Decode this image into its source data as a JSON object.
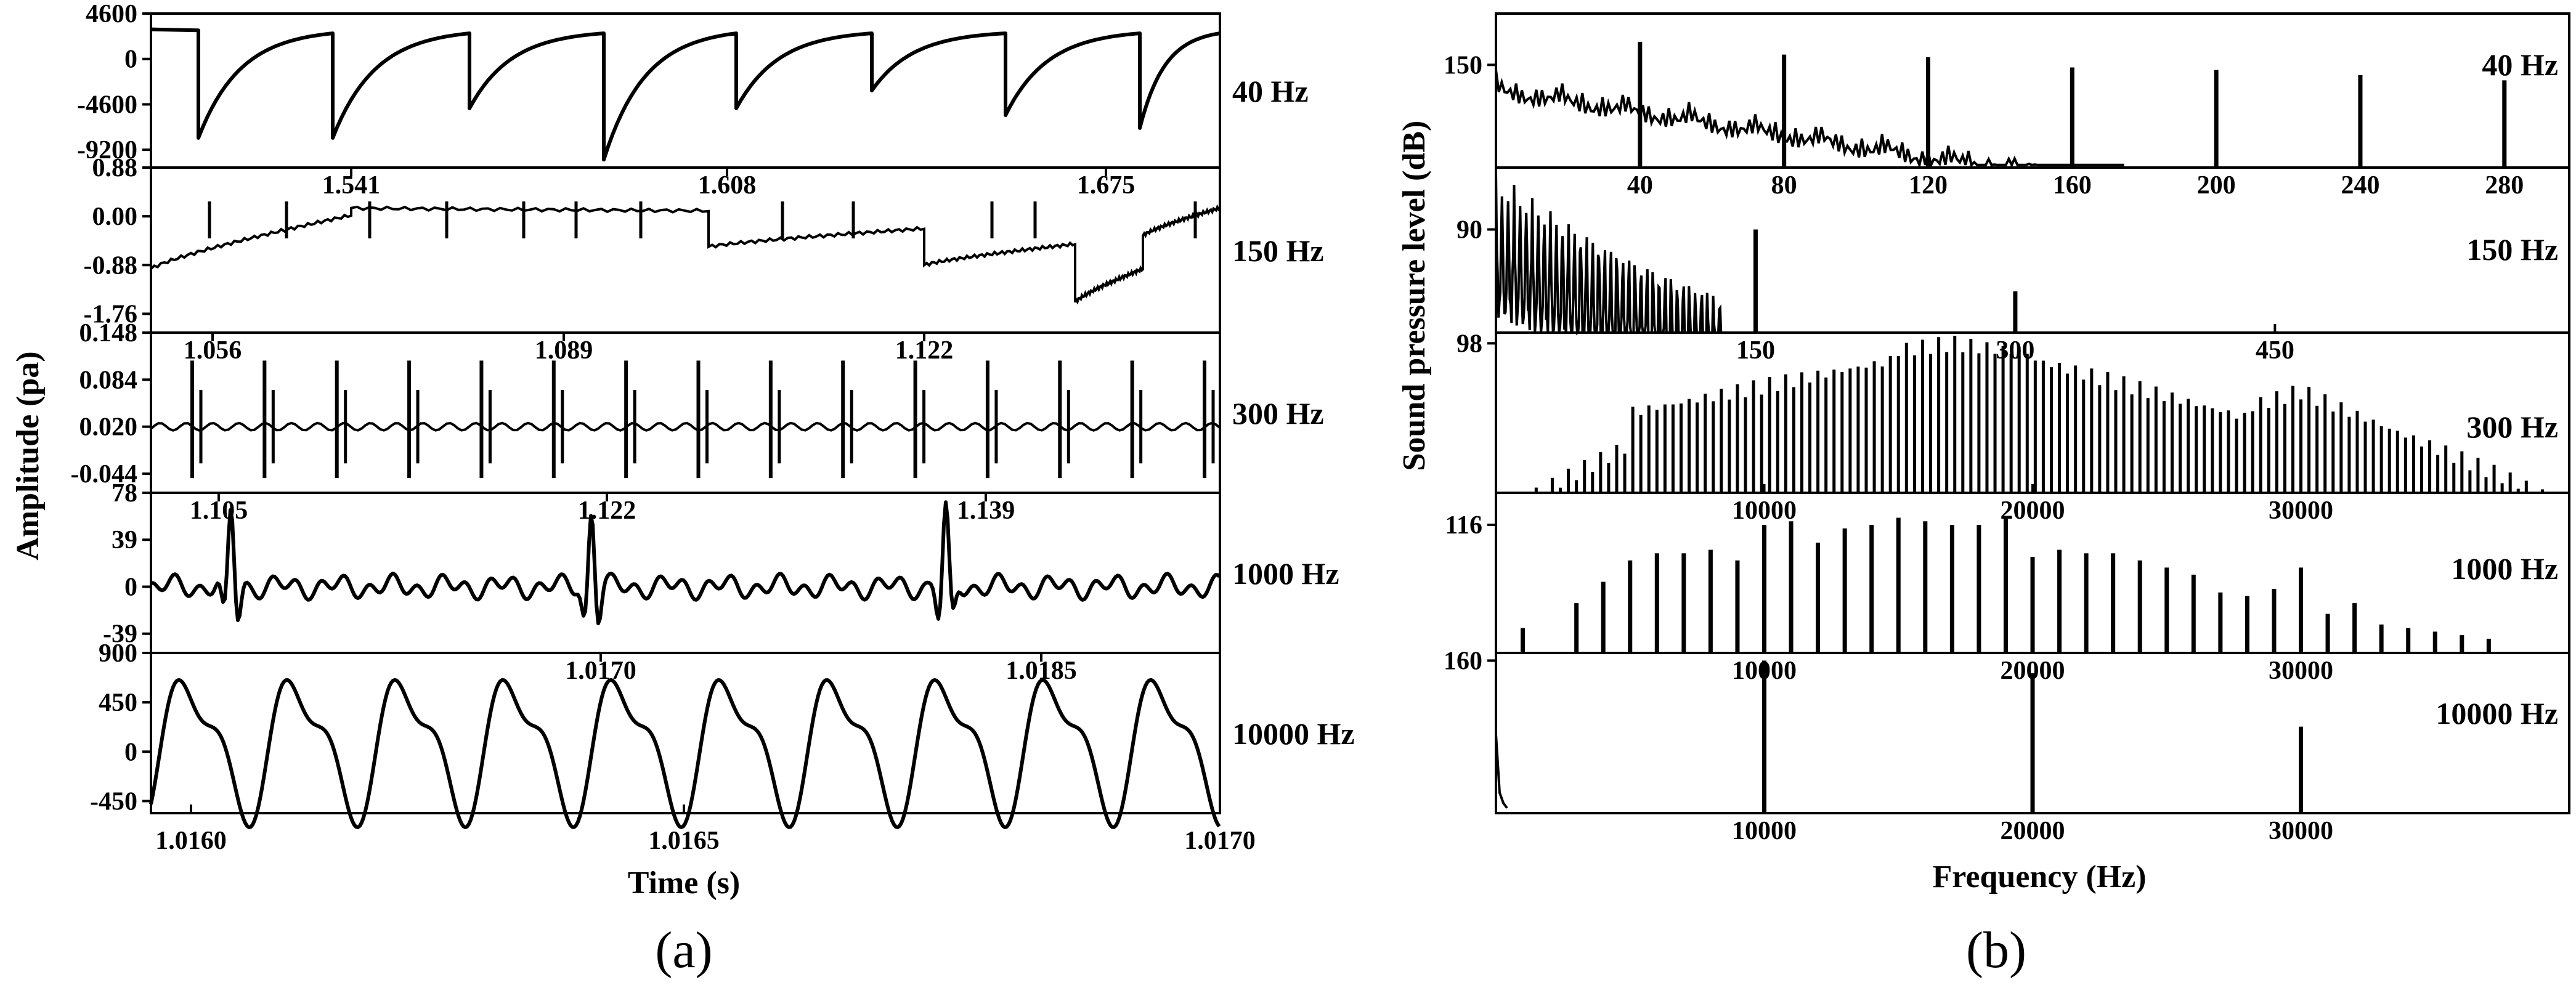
{
  "figure": {
    "caption_a": "(a)",
    "caption_b": "(b)"
  },
  "chart_data": [
    {
      "type": "line",
      "panel": "a",
      "ylabel": "Amplitude (pa)",
      "xlabel": "Time (s)",
      "bottom_xticks": [
        "1.0160",
        "1.0165",
        "1.0170"
      ],
      "bottom_xlim": [
        1.016,
        1.017
      ],
      "subplots": [
        {
          "name": "40 Hz",
          "yticks": [
            "4600",
            "0",
            "-4600",
            "-9200"
          ],
          "ylim": [
            -11000,
            4600
          ],
          "xticks": [],
          "waveform": "sawtooth",
          "cycles": 8,
          "depth": [
            -8000,
            -8000,
            -5000,
            -10200,
            -5000,
            -3200,
            -5700,
            -7000
          ]
        },
        {
          "name": "150 Hz",
          "yticks": [
            "0.88",
            "0.00",
            "-0.88",
            "-1.76"
          ],
          "ylim": [
            -2.1,
            0.88
          ],
          "xticks": [
            "1.541",
            "1.608",
            "1.675"
          ],
          "waveform": "drifting sawtooth"
        },
        {
          "name": "300 Hz",
          "yticks": [
            "0.148",
            "0.084",
            "0.020",
            "-0.044"
          ],
          "ylim": [
            -0.07,
            0.148
          ],
          "xticks": [
            "1.056",
            "1.089",
            "1.122"
          ],
          "waveform": "periodic impulses",
          "impulse_count": 15
        },
        {
          "name": "1000 Hz",
          "yticks": [
            "78",
            "39",
            "0",
            "-39"
          ],
          "ylim": [
            -55,
            78
          ],
          "xticks": [
            "1.105",
            "1.122",
            "1.139"
          ],
          "waveform": "bursts",
          "burst_count": 3
        },
        {
          "name": "10000 Hz",
          "yticks": [
            "900",
            "450",
            "0",
            "-450"
          ],
          "ylim": [
            -560,
            900
          ],
          "xticks": [
            "1.0170",
            "1.0185"
          ],
          "waveform": "periodic",
          "cycles": 10
        }
      ]
    },
    {
      "type": "bar",
      "panel": "b",
      "ylabel": "Sound pressure level (dB)",
      "xlabel": "Frequency (Hz)",
      "subplots": [
        {
          "name": "40 Hz",
          "yticks": [
            "150"
          ],
          "ylim": [
            110,
            170
          ],
          "xlim": [
            0,
            298
          ],
          "xticks": [
            "40",
            "80",
            "120",
            "160",
            "200",
            "240",
            "280"
          ],
          "tick_values": [
            40,
            80,
            120,
            160,
            200,
            240,
            280
          ],
          "peaks": [
            {
              "x": 40,
              "y": 159
            },
            {
              "x": 80,
              "y": 154
            },
            {
              "x": 120,
              "y": 153
            },
            {
              "x": 160,
              "y": 149
            },
            {
              "x": 200,
              "y": 148
            },
            {
              "x": 240,
              "y": 146
            },
            {
              "x": 280,
              "y": 144
            }
          ]
        },
        {
          "name": "150 Hz",
          "yticks": [
            "90"
          ],
          "ylim": [
            65,
            105
          ],
          "xlim": [
            0,
            620
          ],
          "xticks": [
            "150",
            "300",
            "450"
          ],
          "tick_values": [
            150,
            300,
            450
          ],
          "peaks": [
            {
              "x": 150,
              "y": 90
            },
            {
              "x": 300,
              "y": 75
            }
          ]
        },
        {
          "name": "300 Hz",
          "yticks": [
            "98"
          ],
          "ylim": [
            70,
            100
          ],
          "xlim": [
            0,
            40000
          ],
          "xticks": [
            "10000",
            "20000",
            "30000"
          ],
          "tick_values": [
            10000,
            20000,
            30000
          ],
          "peaks": [
            {
              "x": 15000,
              "y": 98
            },
            {
              "x": 17700,
              "y": 98
            }
          ]
        },
        {
          "name": "1000 Hz",
          "yticks": [
            "116"
          ],
          "ylim": [
            80,
            125
          ],
          "xlim": [
            0,
            40000
          ],
          "xticks": [
            "10000",
            "20000",
            "30000"
          ],
          "tick_values": [
            10000,
            20000,
            30000
          ],
          "peaks": [
            {
              "x": 1000,
              "y": 87
            },
            {
              "x": 3000,
              "y": 94
            },
            {
              "x": 4000,
              "y": 100
            },
            {
              "x": 5000,
              "y": 106
            },
            {
              "x": 6000,
              "y": 108
            },
            {
              "x": 7000,
              "y": 108
            },
            {
              "x": 8000,
              "y": 109
            },
            {
              "x": 9000,
              "y": 106
            },
            {
              "x": 10000,
              "y": 116
            },
            {
              "x": 11000,
              "y": 117
            },
            {
              "x": 12000,
              "y": 111
            },
            {
              "x": 13000,
              "y": 115
            },
            {
              "x": 14000,
              "y": 116
            },
            {
              "x": 15000,
              "y": 118
            },
            {
              "x": 16000,
              "y": 117
            },
            {
              "x": 17000,
              "y": 116
            },
            {
              "x": 18000,
              "y": 116
            },
            {
              "x": 19000,
              "y": 118
            },
            {
              "x": 20000,
              "y": 107
            },
            {
              "x": 21000,
              "y": 109
            },
            {
              "x": 22000,
              "y": 108
            },
            {
              "x": 23000,
              "y": 108
            },
            {
              "x": 24000,
              "y": 106
            },
            {
              "x": 25000,
              "y": 104
            },
            {
              "x": 26000,
              "y": 102
            },
            {
              "x": 27000,
              "y": 97
            },
            {
              "x": 28000,
              "y": 96
            },
            {
              "x": 29000,
              "y": 98
            },
            {
              "x": 30000,
              "y": 104
            },
            {
              "x": 31000,
              "y": 91
            },
            {
              "x": 32000,
              "y": 94
            },
            {
              "x": 33000,
              "y": 88
            },
            {
              "x": 34000,
              "y": 87
            },
            {
              "x": 35000,
              "y": 86
            },
            {
              "x": 36000,
              "y": 85
            },
            {
              "x": 37000,
              "y": 84
            }
          ]
        },
        {
          "name": "10000 Hz",
          "yticks": [
            "160"
          ],
          "ylim": [
            100,
            163
          ],
          "xlim": [
            0,
            40000
          ],
          "xticks": [
            "10000",
            "20000",
            "30000"
          ],
          "tick_values": [
            10000,
            20000,
            30000
          ],
          "peaks": [
            {
              "x": 10000,
              "y": 160
            },
            {
              "x": 20000,
              "y": 155
            },
            {
              "x": 30000,
              "y": 134
            }
          ]
        }
      ]
    }
  ]
}
